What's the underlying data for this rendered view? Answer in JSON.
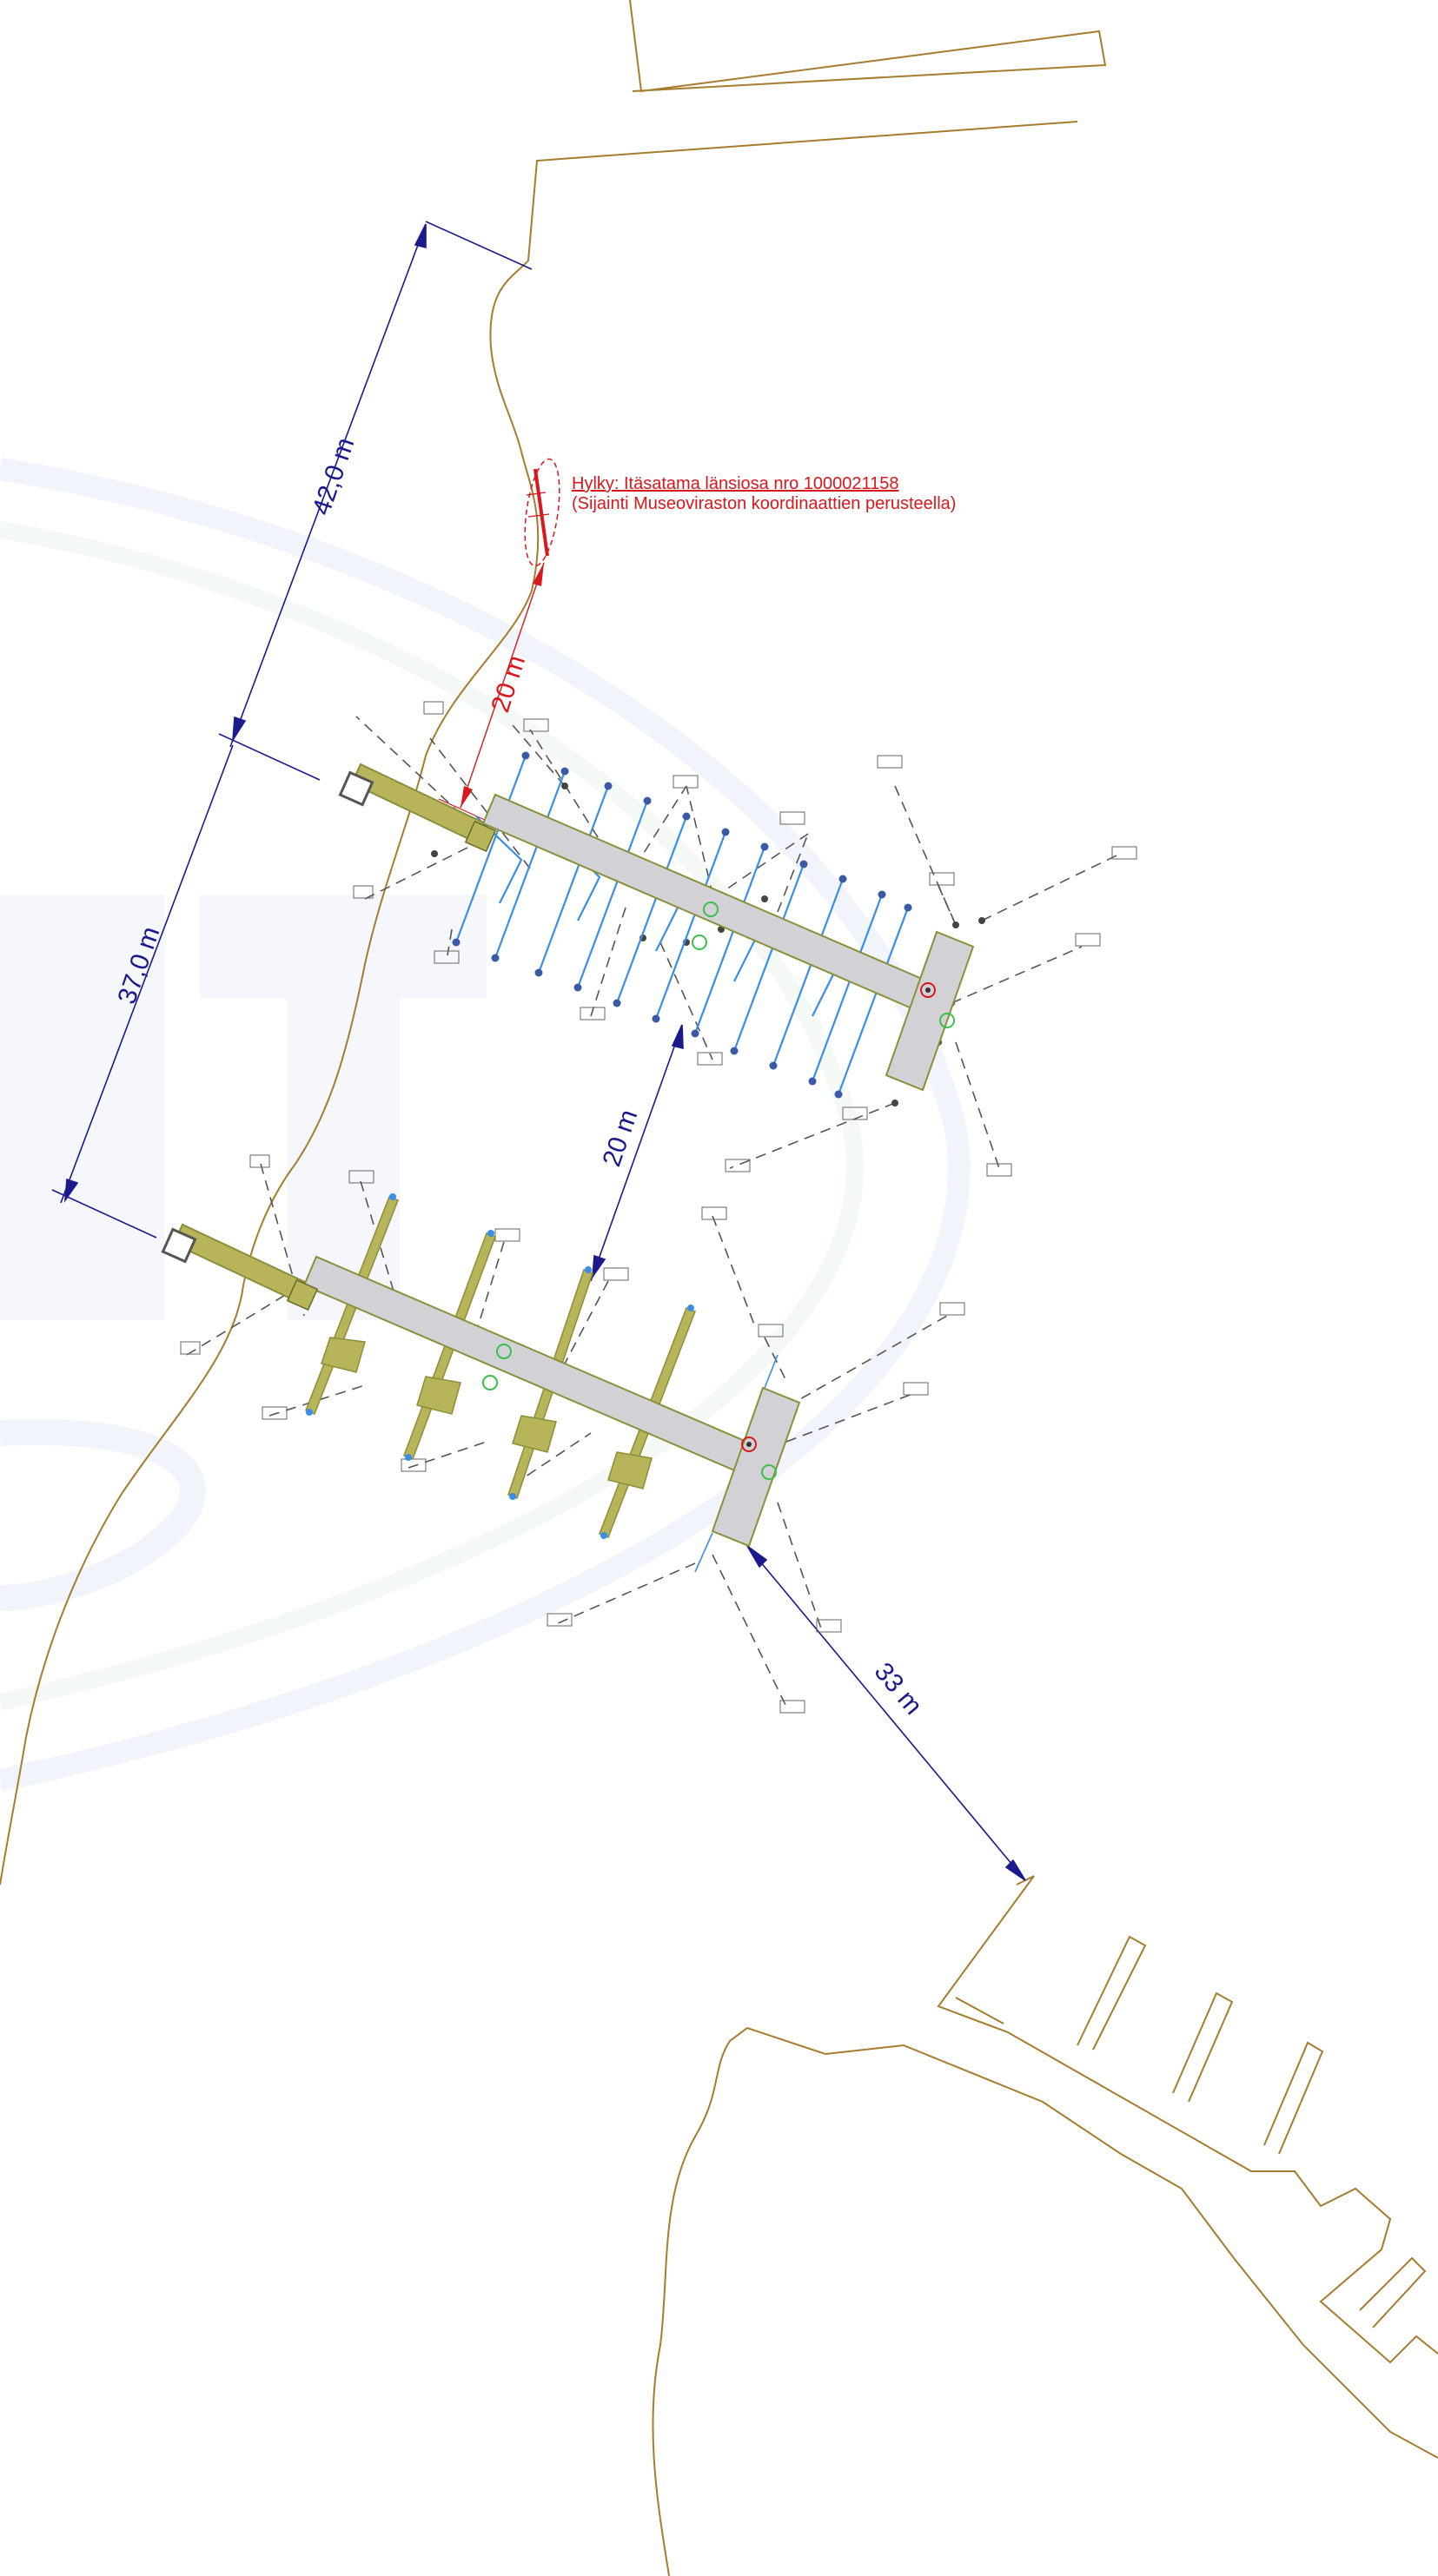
{
  "wreck": {
    "title": "Hylky: Itäsatama länsiosa nro 1000021158",
    "subtitle": "(Sijainti Museoviraston koordinaattien perusteella)"
  },
  "dimensions": {
    "upper_shore": "42,0 m",
    "pier_spacing": "37,0 m",
    "wreck_distance": "20 m",
    "pier_gap": "20 m",
    "harbour_distance": "33 m"
  },
  "colors": {
    "shoreline": "#a67c2e",
    "dimension": "#1a1a8c",
    "wreck": "#d8181c",
    "pier": "#d2d2d6",
    "pier_edge": "#8a8f3a",
    "walkway": "#b7b459",
    "mooring_upper": "#3a8ee6",
    "anchor": "#555555",
    "background_logo": "#e9eef8"
  }
}
